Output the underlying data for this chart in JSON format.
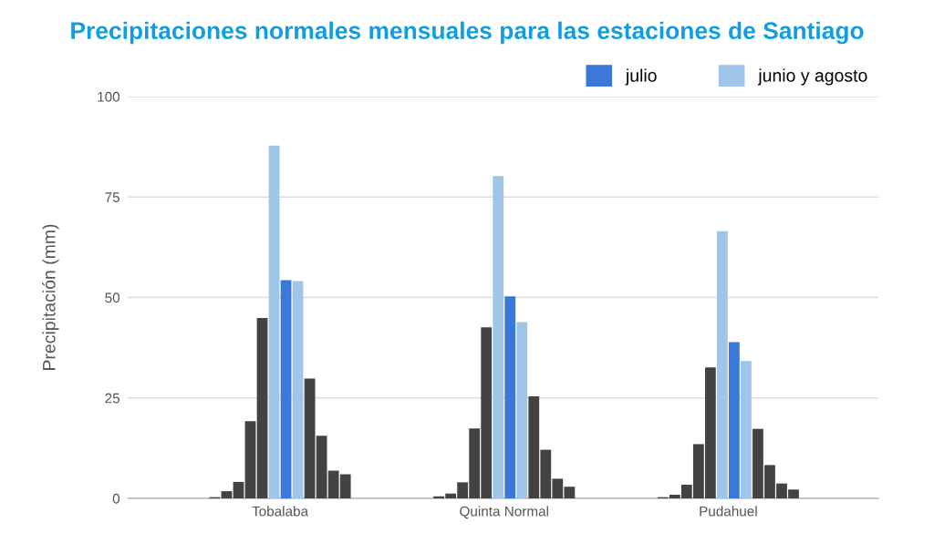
{
  "chart_data": {
    "type": "bar",
    "title": "Precipitaciones normales mensuales para las estaciones de Santiago",
    "ylabel": "Precipitación (mm)",
    "categories": [
      "Tobalaba",
      "Quinta Normal",
      "Pudahuel"
    ],
    "series": [
      {
        "color": "#434343",
        "values": [
          0.3,
          0.5,
          0.3
        ]
      },
      {
        "color": "#434343",
        "values": [
          1.8,
          1.2,
          0.9
        ]
      },
      {
        "color": "#434343",
        "values": [
          4.1,
          4.0,
          3.4
        ]
      },
      {
        "color": "#434343",
        "values": [
          19.2,
          17.4,
          13.5
        ]
      },
      {
        "color": "#434343",
        "values": [
          44.9,
          42.6,
          32.6
        ]
      },
      {
        "name": "junio y agosto",
        "color": "#9fc5e8",
        "values": [
          87.8,
          80.2,
          66.5
        ]
      },
      {
        "name": "julio",
        "color": "#3c78d8",
        "values": [
          54.3,
          50.3,
          38.9
        ]
      },
      {
        "color": "#9fc5e8",
        "values": [
          54.1,
          43.9,
          34.2
        ]
      },
      {
        "color": "#434343",
        "values": [
          29.8,
          25.4,
          17.3
        ]
      },
      {
        "color": "#434343",
        "values": [
          15.6,
          12.1,
          8.3
        ]
      },
      {
        "color": "#434343",
        "values": [
          6.9,
          4.9,
          3.7
        ]
      },
      {
        "color": "#434343",
        "values": [
          6.0,
          2.9,
          2.2
        ]
      }
    ],
    "ylim": [
      0,
      100
    ],
    "yticks": [
      0,
      25,
      50,
      75,
      100
    ],
    "grid": "y",
    "legend": "top right"
  }
}
